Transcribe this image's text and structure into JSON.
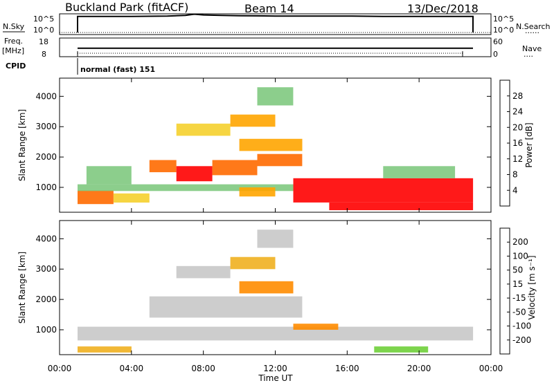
{
  "header": {
    "station": "Buckland Park (fitACF)",
    "beam": "Beam 14",
    "date": "13/Dec/2018"
  },
  "noise_panel": {
    "left_label": "N.Sky",
    "left_ticks": [
      "10^5",
      "10^0"
    ],
    "right_ticks": [
      "10^5",
      "10^0"
    ],
    "right_label": "N.Search",
    "right_label_line": "......"
  },
  "freq_panel": {
    "left_label_top": "Freq.",
    "left_label_bottom": "[MHz]",
    "left_ticks": [
      "18",
      "8"
    ],
    "right_ticks": [
      "60",
      "0"
    ],
    "right_label": "Nave",
    "right_label_line": "...."
  },
  "cpid_panel": {
    "label": "CPID",
    "value": "normal (fast) 151"
  },
  "power_panel": {
    "ylabel": "Slant Range [km]",
    "yticks": [
      "1000",
      "2000",
      "3000",
      "4000"
    ],
    "colorbar_label": "Power [dB]",
    "colorbar_ticks": [
      "4",
      "8",
      "12",
      "16",
      "20",
      "24",
      "28"
    ],
    "colorbar_colors": [
      "#0000ff",
      "#2b4fb0",
      "#2e8b57",
      "#7fc97f",
      "#f5d02e",
      "#ffa500",
      "#ff6a00",
      "#ff0000"
    ]
  },
  "velocity_panel": {
    "ylabel": "Slant Range [km]",
    "yticks": [
      "1000",
      "2000",
      "3000",
      "4000"
    ],
    "colorbar_label": "Velocity [m s⁻¹]",
    "colorbar_ticks": [
      "-200",
      "-100",
      "-50",
      "-15",
      "15",
      "50",
      "100",
      "200"
    ],
    "colorbar_colors": [
      "#ff0000",
      "#ff5a00",
      "#ff8c00",
      "#f0b020",
      "#c8c8c8",
      "#6fcf3a",
      "#2e8b57",
      "#2b4fb0",
      "#0000c8"
    ]
  },
  "x_axis": {
    "ticks": [
      "00:00",
      "04:00",
      "08:00",
      "12:00",
      "16:00",
      "20:00",
      "00:00"
    ],
    "label": "Time UT"
  },
  "chart_data": [
    {
      "type": "line",
      "name": "N.Sky",
      "x": [
        1.0,
        2,
        4,
        6,
        7,
        7.5,
        8,
        9,
        10,
        12,
        14,
        16,
        18,
        20,
        22,
        23.0
      ],
      "y_log10": [
        4.3,
        4.3,
        4.3,
        4.4,
        4.6,
        4.9,
        4.7,
        4.6,
        4.5,
        4.4,
        4.4,
        4.4,
        4.3,
        4.3,
        4.3,
        4.3
      ],
      "xlim": [
        0,
        24
      ]
    },
    {
      "type": "line",
      "name": "Freq.",
      "x": [
        1.0,
        23.0
      ],
      "y": [
        12.5,
        12.5
      ],
      "ylim": [
        8,
        18
      ],
      "xlim": [
        0,
        24
      ]
    },
    {
      "type": "heatmap",
      "title": "Power",
      "xlabel": "Time UT",
      "ylabel": "Slant Range [km]",
      "xlim": [
        0,
        24
      ],
      "ylim": [
        180,
        4600
      ],
      "clim": [
        0,
        32
      ],
      "regions": [
        {
          "t0": 1.0,
          "t1": 3.0,
          "r0": 450,
          "r1": 900,
          "v": 26
        },
        {
          "t0": 1.0,
          "t1": 13.0,
          "r0": 880,
          "r1": 1100,
          "v": 14
        },
        {
          "t0": 1.5,
          "t1": 4.0,
          "r0": 1100,
          "r1": 1700,
          "v": 12
        },
        {
          "t0": 3.0,
          "t1": 5.0,
          "r0": 500,
          "r1": 800,
          "v": 18
        },
        {
          "t0": 5.0,
          "t1": 6.5,
          "r0": 1500,
          "r1": 1900,
          "v": 24
        },
        {
          "t0": 6.5,
          "t1": 8.5,
          "r0": 1200,
          "r1": 1700,
          "v": 28
        },
        {
          "t0": 8.5,
          "t1": 11.0,
          "r0": 1400,
          "r1": 1900,
          "v": 26
        },
        {
          "t0": 11.0,
          "t1": 13.5,
          "r0": 1700,
          "r1": 2100,
          "v": 26
        },
        {
          "t0": 10.0,
          "t1": 12.0,
          "r0": 700,
          "r1": 1000,
          "v": 22
        },
        {
          "t0": 13.0,
          "t1": 23.0,
          "r0": 500,
          "r1": 1300,
          "v": 30
        },
        {
          "t0": 15.0,
          "t1": 23.0,
          "r0": 250,
          "r1": 500,
          "v": 28
        },
        {
          "t0": 6.5,
          "t1": 9.5,
          "r0": 2700,
          "r1": 3100,
          "v": 18
        },
        {
          "t0": 9.5,
          "t1": 12.0,
          "r0": 3000,
          "r1": 3400,
          "v": 20
        },
        {
          "t0": 10.0,
          "t1": 13.5,
          "r0": 2200,
          "r1": 2600,
          "v": 22
        },
        {
          "t0": 11.0,
          "t1": 13.0,
          "r0": 3700,
          "r1": 4300,
          "v": 14
        },
        {
          "t0": 18.0,
          "t1": 22.0,
          "r0": 1300,
          "r1": 1700,
          "v": 12
        }
      ]
    },
    {
      "type": "heatmap",
      "title": "Velocity",
      "xlabel": "Time UT",
      "ylabel": "Slant Range [km]",
      "xlim": [
        0,
        24
      ],
      "ylim": [
        180,
        4600
      ],
      "clim": [
        -250,
        250
      ],
      "regions": [
        {
          "t0": 1.0,
          "t1": 23.0,
          "r0": 650,
          "r1": 1100,
          "v": 0
        },
        {
          "t0": 1.0,
          "t1": 4.0,
          "r0": 250,
          "r1": 450,
          "v": -40
        },
        {
          "t0": 5.0,
          "t1": 13.5,
          "r0": 1400,
          "r1": 2100,
          "v": 0
        },
        {
          "t0": 6.5,
          "t1": 9.5,
          "r0": 2700,
          "r1": 3100,
          "v": 0
        },
        {
          "t0": 9.5,
          "t1": 12.0,
          "r0": 3000,
          "r1": 3400,
          "v": -30
        },
        {
          "t0": 10.0,
          "t1": 13.0,
          "r0": 2200,
          "r1": 2600,
          "v": -60
        },
        {
          "t0": 13.0,
          "t1": 15.5,
          "r0": 1000,
          "r1": 1200,
          "v": -70
        },
        {
          "t0": 17.5,
          "t1": 20.5,
          "r0": 250,
          "r1": 450,
          "v": 40
        },
        {
          "t0": 11.0,
          "t1": 13.0,
          "r0": 3700,
          "r1": 4300,
          "v": 0
        }
      ]
    }
  ]
}
